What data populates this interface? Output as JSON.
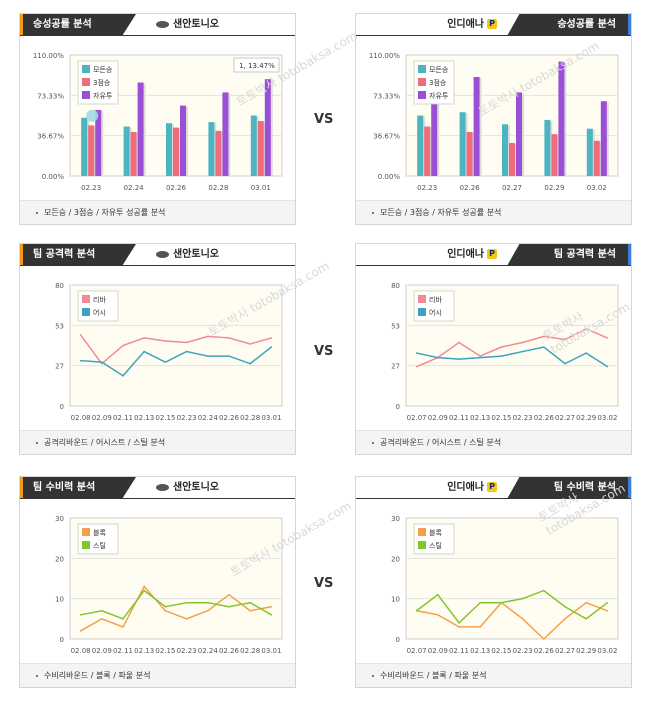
{
  "vs_label": "VS",
  "watermark": "토토박사 totobaksa.com",
  "sections": [
    {
      "id": "win",
      "title": "승성공률 분석",
      "footer": "모든승 / 3점승 / 자유투 성공률 분석",
      "colors": [
        "#4bb5c1",
        "#f06c7d",
        "#9b4fd6"
      ]
    },
    {
      "id": "off",
      "title": "팀 공격력 분석",
      "footer": "공격리바운드 / 어시스트 / 스틸 분석",
      "colors": [
        "#f08a96",
        "#3fa3bd"
      ]
    },
    {
      "id": "def",
      "title": "팀 수비력 분석",
      "footer": "수비리바운드 / 블록 / 파울 분석",
      "colors": [
        "#f4a04a",
        "#86c42e"
      ]
    }
  ],
  "teams": {
    "left": "샌안토니오",
    "right": "인디애나",
    "right_logo": "P"
  },
  "chart_data": [
    {
      "type": "bar",
      "panel": "win-left",
      "categories": [
        "02.23",
        "02.24",
        "02.26",
        "02.28",
        "03.01"
      ],
      "yticks": [
        "0.00%",
        "36.67%",
        "73.33%",
        "110.00%"
      ],
      "ylim": [
        0,
        110
      ],
      "series": [
        {
          "name": "모든승",
          "values": [
            53,
            45,
            48,
            49,
            55
          ]
        },
        {
          "name": "3점승",
          "values": [
            46,
            40,
            44,
            41,
            50
          ]
        },
        {
          "name": "자유투",
          "values": [
            60,
            85,
            64,
            76,
            88
          ]
        }
      ],
      "tooltip": "1, 13.47%"
    },
    {
      "type": "bar",
      "panel": "win-right",
      "categories": [
        "02.23",
        "02.26",
        "02.27",
        "02.29",
        "03.02"
      ],
      "yticks": [
        "0.00%",
        "36.67%",
        "73.33%",
        "110.00%"
      ],
      "ylim": [
        0,
        110
      ],
      "series": [
        {
          "name": "모든승",
          "values": [
            55,
            58,
            47,
            51,
            43
          ]
        },
        {
          "name": "3점승",
          "values": [
            45,
            40,
            30,
            38,
            32
          ]
        },
        {
          "name": "자유투",
          "values": [
            86,
            90,
            76,
            104,
            68
          ]
        }
      ]
    },
    {
      "type": "line",
      "panel": "off-left",
      "x": [
        "02.08",
        "02.09",
        "02.11",
        "02.13",
        "02.15",
        "02.23",
        "02.24",
        "02.26",
        "02.28",
        "03.01"
      ],
      "yticks": [
        "0",
        "27",
        "53",
        "80"
      ],
      "ylim": [
        0,
        80
      ],
      "series": [
        {
          "name": "리바",
          "values": [
            47,
            28,
            40,
            45,
            43,
            42,
            46,
            45,
            41,
            45
          ]
        },
        {
          "name": "어시",
          "values": [
            30,
            29,
            20,
            36,
            29,
            36,
            33,
            33,
            28,
            39
          ]
        }
      ]
    },
    {
      "type": "line",
      "panel": "off-right",
      "x": [
        "02.07",
        "02.09",
        "02.11",
        "02.13",
        "02.15",
        "02.23",
        "02.26",
        "02.27",
        "02.29",
        "03.02"
      ],
      "yticks": [
        "0",
        "27",
        "53",
        "80"
      ],
      "ylim": [
        0,
        80
      ],
      "series": [
        {
          "name": "리바",
          "values": [
            26,
            32,
            42,
            33,
            39,
            42,
            46,
            44,
            51,
            45
          ]
        },
        {
          "name": "어시",
          "values": [
            35,
            32,
            31,
            32,
            33,
            36,
            39,
            28,
            35,
            26
          ]
        }
      ]
    },
    {
      "type": "line",
      "panel": "def-left",
      "x": [
        "02.08",
        "02.09",
        "02.11",
        "02.13",
        "02.15",
        "02.23",
        "02.24",
        "02.26",
        "02.28",
        "03.01"
      ],
      "yticks": [
        "0",
        "10",
        "20",
        "30"
      ],
      "ylim": [
        0,
        30
      ],
      "series": [
        {
          "name": "블록",
          "values": [
            2,
            5,
            3,
            13,
            7,
            5,
            7,
            11,
            7,
            8
          ]
        },
        {
          "name": "스틸",
          "values": [
            6,
            7,
            5,
            12,
            8,
            9,
            9,
            8,
            9,
            6
          ]
        }
      ]
    },
    {
      "type": "line",
      "panel": "def-right",
      "x": [
        "02.07",
        "02.09",
        "02.11",
        "02.13",
        "02.15",
        "02.23",
        "02.26",
        "02.27",
        "02.29",
        "03.02"
      ],
      "yticks": [
        "0",
        "10",
        "20",
        "30"
      ],
      "ylim": [
        0,
        30
      ],
      "series": [
        {
          "name": "블록",
          "values": [
            7,
            6,
            3,
            3,
            9,
            5,
            0,
            5,
            9,
            7
          ]
        },
        {
          "name": "스틸",
          "values": [
            7,
            11,
            4,
            9,
            9,
            10,
            12,
            8,
            5,
            9
          ]
        }
      ]
    }
  ]
}
